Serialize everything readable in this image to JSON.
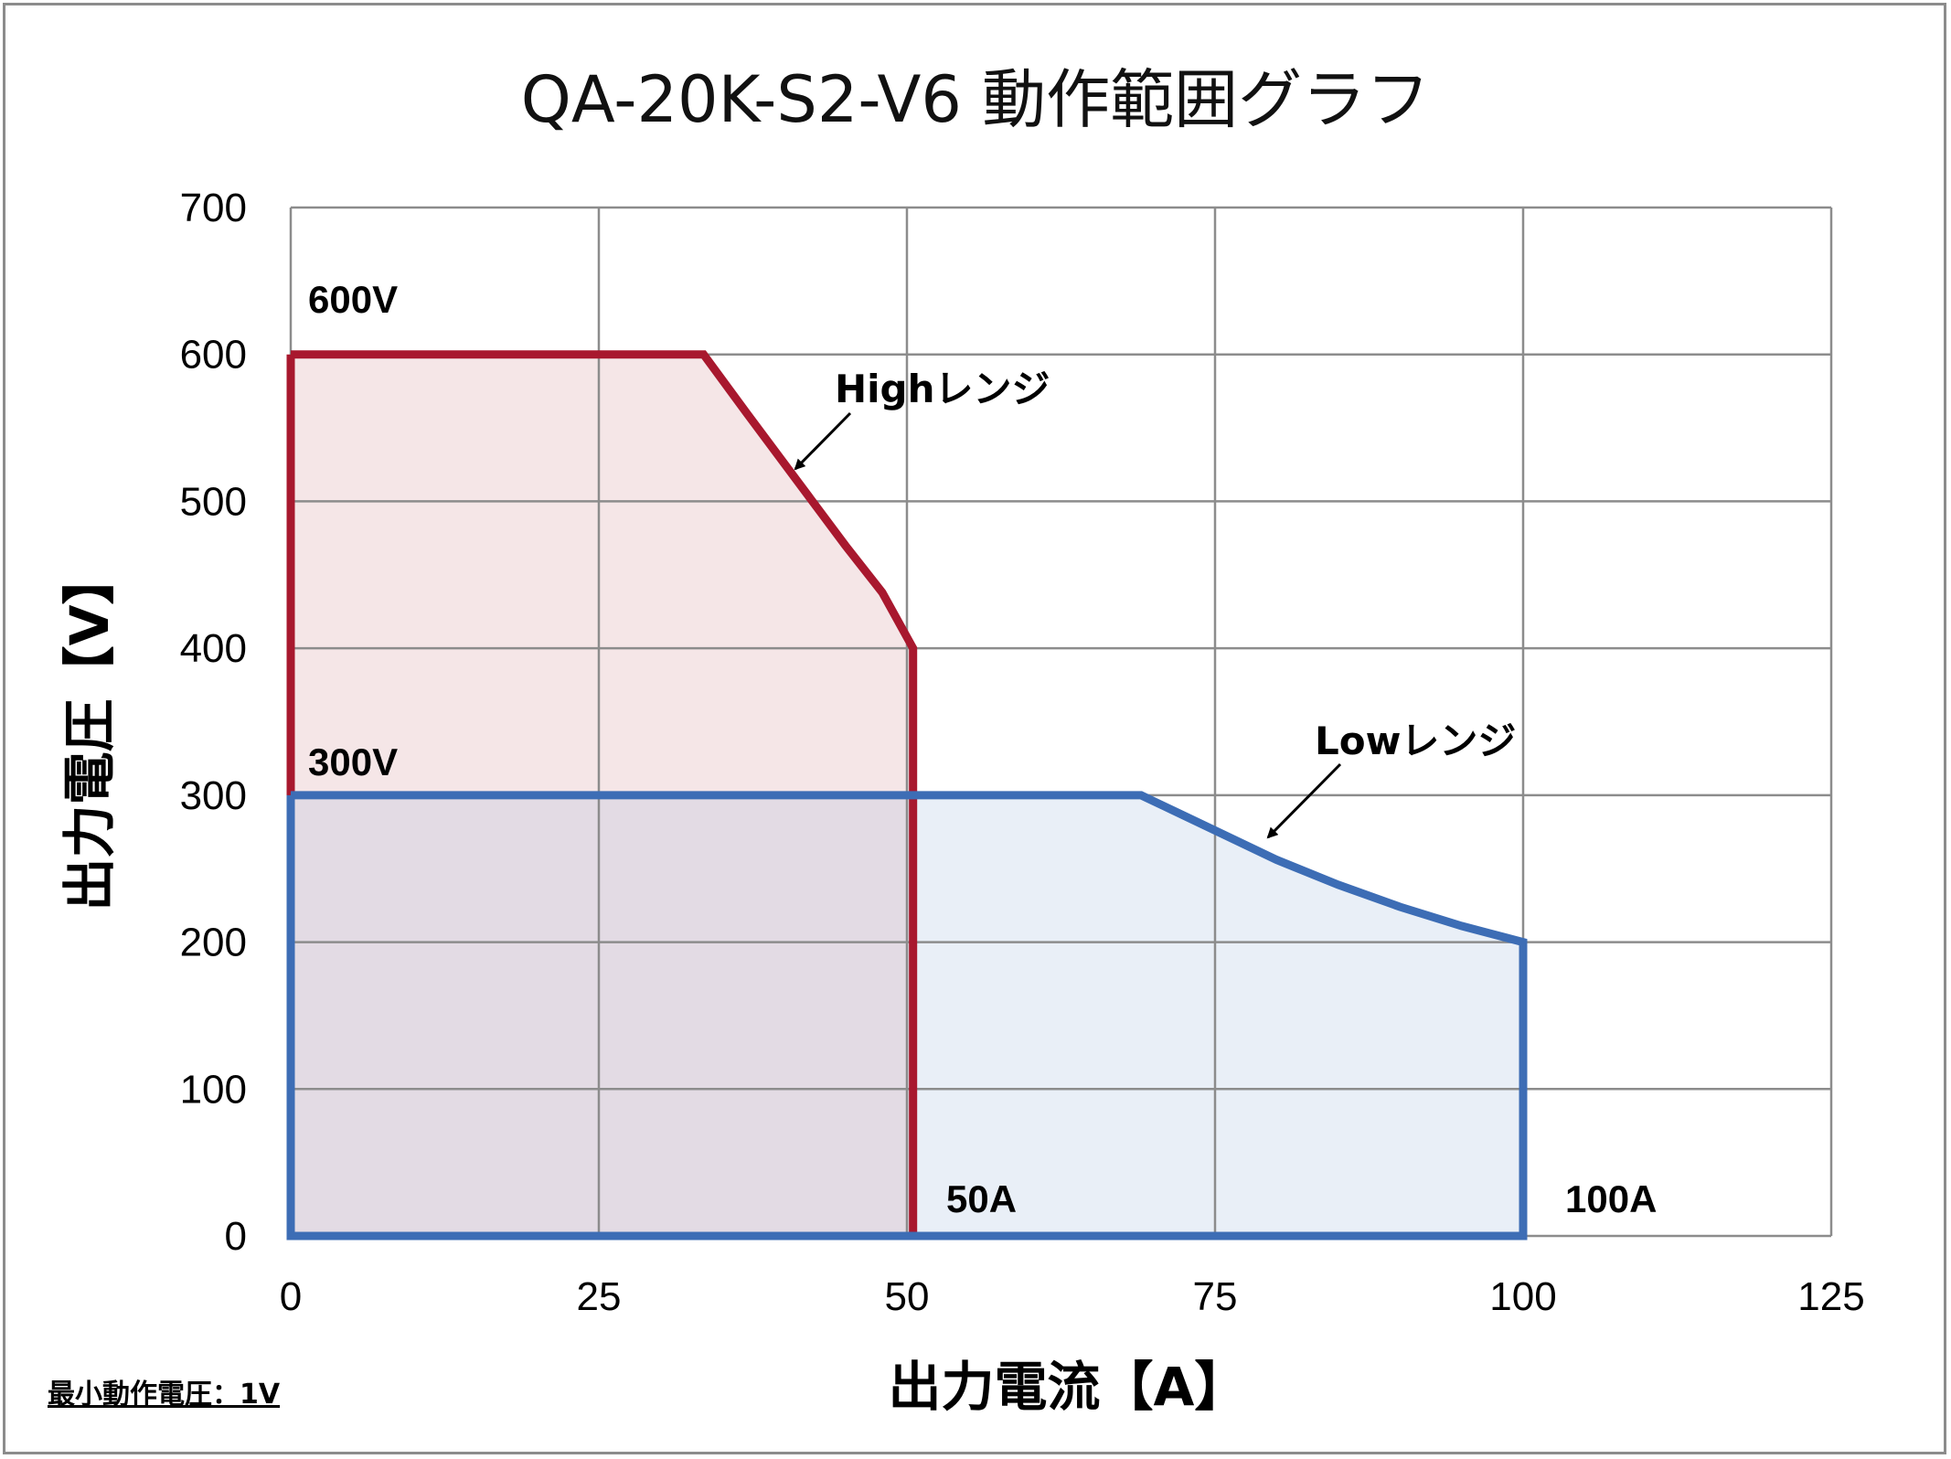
{
  "chart_data": {
    "type": "area",
    "title": "QA-20K-S2-V6  動作範囲グラフ",
    "xlabel": "出力電流【A】",
    "ylabel": "出力電圧【V】",
    "xlim": [
      0,
      125
    ],
    "ylim": [
      0,
      700
    ],
    "xticks": [
      0,
      25,
      50,
      75,
      100,
      125
    ],
    "yticks": [
      0,
      100,
      200,
      300,
      400,
      500,
      600,
      700
    ],
    "grid": true,
    "series": [
      {
        "name": "Highレンジ",
        "color": "#a8182e",
        "fill": "#f5e6e7",
        "points": [
          [
            0,
            600
          ],
          [
            33.5,
            600
          ],
          [
            37,
            560
          ],
          [
            41,
            515
          ],
          [
            45,
            470
          ],
          [
            48,
            438
          ],
          [
            50.5,
            400
          ],
          [
            50.5,
            0
          ],
          [
            0,
            0
          ]
        ]
      },
      {
        "name": "Lowレンジ",
        "color": "#3d6db5",
        "fill": "#e9eff7",
        "points": [
          [
            0,
            300
          ],
          [
            69,
            300
          ],
          [
            75,
            276
          ],
          [
            80,
            256
          ],
          [
            85,
            239
          ],
          [
            90,
            224
          ],
          [
            95,
            211
          ],
          [
            100,
            200
          ],
          [
            100,
            0
          ],
          [
            0,
            0
          ]
        ]
      }
    ],
    "annotations": {
      "v600": "600V",
      "v300": "300V",
      "a50": "50A",
      "a100": "100A",
      "high_range": "Highレンジ",
      "low_range": "Lowレンジ"
    },
    "note": "最小動作電圧：1V"
  },
  "colors": {
    "grid": "#8c8c8c",
    "overlap_fill": "#e3dbe4"
  }
}
